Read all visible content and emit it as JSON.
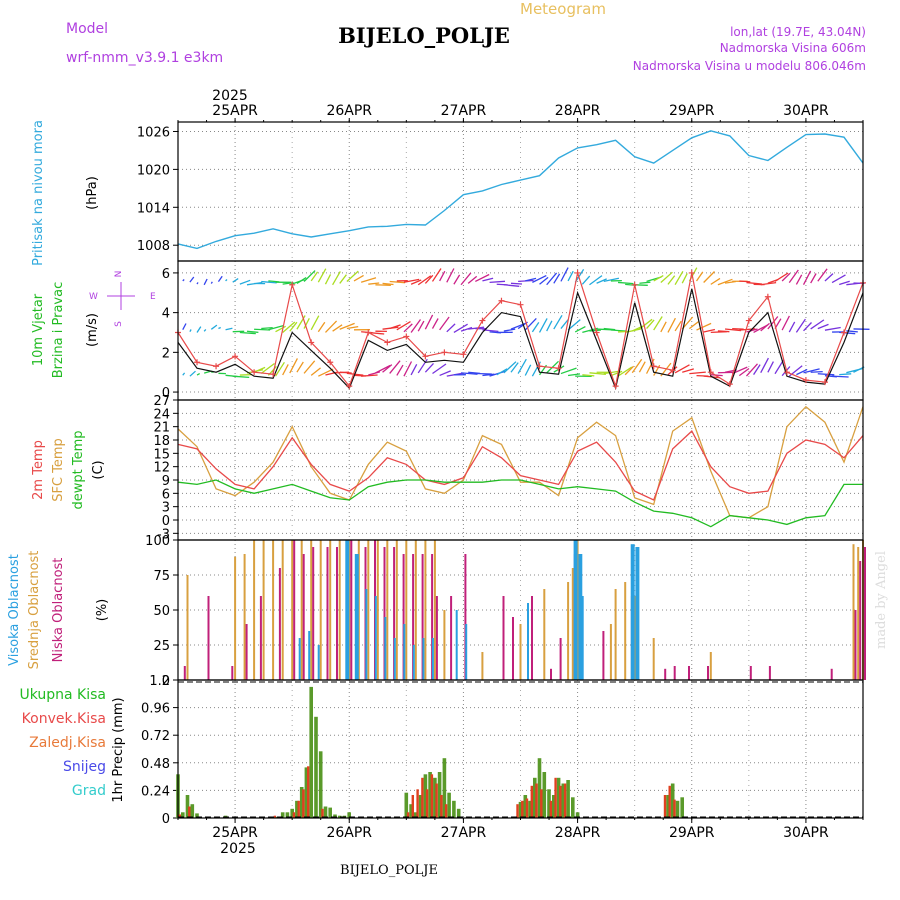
{
  "chart_data": {
    "type": "meteogram",
    "title": "BIJELO_POLJE",
    "subtitle": "Meteogram",
    "footer_label": "BIJELO_POLJE",
    "watermark": "made by Angel",
    "model_label": "Model",
    "model_name": "wrf-nmm_v3.9.1  e3km",
    "location_info": [
      "lon,lat (19.7E, 43.04N)",
      "Nadmorska Visina 606m",
      "Nadmorska Visina u modelu 806.046m"
    ],
    "year": "2025",
    "days": [
      "25APR",
      "26APR",
      "27APR",
      "28APR",
      "29APR",
      "30APR"
    ],
    "x_range_hours": [
      -12,
      132
    ],
    "colors": {
      "pressure": "#33aadd",
      "temp2m": "#e84a4a",
      "sfc": "#d8a040",
      "dewpt": "#22bb22",
      "high_cloud": "#2aa0e0",
      "mid_cloud": "#d8a040",
      "low_cloud": "#c0207a",
      "precip": "#5a9a2a",
      "conv": "#e04020",
      "wind_line": "#111111",
      "gust": "#e84a4a"
    },
    "panels": {
      "pressure": {
        "ylabel": "Pritisak na nivou mora",
        "unit": "(hPa)",
        "yticks": [
          "1008",
          "1014",
          "1020",
          "1026"
        ],
        "ylim": [
          1005.5,
          1027.5
        ],
        "series": {
          "x": [
            -12,
            -8,
            -4,
            0,
            4,
            8,
            12,
            16,
            20,
            24,
            28,
            32,
            36,
            40,
            44,
            48,
            52,
            56,
            60,
            64,
            68,
            72,
            76,
            80,
            84,
            88,
            92,
            96,
            100,
            104,
            108,
            112,
            116,
            120,
            124,
            128,
            132
          ],
          "values": [
            1008.2,
            1007.5,
            1008.6,
            1009.5,
            1009.9,
            1010.6,
            1009.8,
            1009.3,
            1009.8,
            1010.3,
            1010.9,
            1011.0,
            1011.3,
            1011.2,
            1013.5,
            1016.0,
            1016.6,
            1017.6,
            1018.3,
            1019.0,
            1021.8,
            1023.4,
            1023.9,
            1024.6,
            1022.0,
            1021.0,
            1023.0,
            1025.0,
            1026.1,
            1025.3,
            1022.2,
            1021.4,
            1023.5,
            1025.5,
            1025.6,
            1025.1,
            1021.0
          ]
        }
      },
      "wind": {
        "ylabel": [
          "10m Vjetar",
          "Brzina i Pravac"
        ],
        "unit": "(m/s)",
        "yticks": [
          "0",
          "2",
          "4",
          "6"
        ],
        "ylim": [
          -0.4,
          6.6
        ],
        "compass": [
          "N",
          "W",
          "E",
          "S"
        ],
        "speed": {
          "x": [
            -12,
            -8,
            -4,
            0,
            4,
            8,
            12,
            16,
            20,
            24,
            28,
            32,
            36,
            40,
            44,
            48,
            52,
            56,
            60,
            64,
            68,
            72,
            76,
            80,
            84,
            88,
            92,
            96,
            100,
            104,
            108,
            112,
            116,
            120,
            124,
            128,
            132
          ],
          "values": [
            2.5,
            1.2,
            1.0,
            1.4,
            0.8,
            0.7,
            3.0,
            2.1,
            1.2,
            0.2,
            2.6,
            2.1,
            2.4,
            1.5,
            1.6,
            1.5,
            3.0,
            4.0,
            3.8,
            1.0,
            0.9,
            5.0,
            2.6,
            0.2,
            4.5,
            1.0,
            0.8,
            5.2,
            0.8,
            0.3,
            3.0,
            4.0,
            0.8,
            0.5,
            0.4,
            2.5,
            5.0
          ]
        },
        "gust": {
          "x": [
            -12,
            -8,
            -4,
            0,
            4,
            8,
            12,
            16,
            20,
            24,
            28,
            32,
            36,
            40,
            44,
            48,
            52,
            56,
            60,
            64,
            68,
            72,
            76,
            80,
            84,
            88,
            92,
            96,
            100,
            104,
            108,
            112,
            116,
            120,
            124,
            128,
            132
          ],
          "values": [
            3.0,
            1.5,
            1.3,
            1.8,
            1.0,
            0.9,
            5.4,
            2.5,
            1.5,
            0.3,
            3.0,
            2.5,
            2.8,
            1.8,
            2.0,
            1.9,
            3.6,
            4.6,
            4.4,
            1.3,
            1.2,
            6.0,
            3.0,
            0.3,
            5.4,
            1.3,
            1.1,
            6.0,
            1.0,
            0.4,
            3.6,
            4.8,
            1.0,
            0.6,
            0.5,
            3.0,
            5.5
          ]
        }
      },
      "temperature": {
        "ylabel": [
          "2m Temp",
          "SFC Temp",
          "dewpt Temp"
        ],
        "unit": "(C)",
        "yticks": [
          "-3",
          "0",
          "3",
          "6",
          "9",
          "12",
          "15",
          "18",
          "21",
          "24",
          "27"
        ],
        "ylim": [
          -4.5,
          27
        ],
        "x": [
          -12,
          -8,
          -4,
          0,
          4,
          8,
          12,
          16,
          20,
          24,
          28,
          32,
          36,
          40,
          44,
          48,
          52,
          56,
          60,
          64,
          68,
          72,
          76,
          80,
          84,
          88,
          92,
          96,
          100,
          104,
          108,
          112,
          116,
          120,
          124,
          128,
          132
        ],
        "temp2m": [
          17.0,
          16.0,
          11.5,
          8.0,
          7.0,
          12.0,
          18.5,
          12.5,
          8.0,
          6.5,
          9.5,
          14.0,
          12.5,
          9.0,
          8.0,
          9.5,
          16.5,
          14.0,
          10.0,
          9.0,
          8.0,
          15.5,
          17.5,
          13.0,
          6.5,
          4.5,
          16.0,
          20.0,
          12.0,
          7.5,
          6.0,
          6.5,
          15.0,
          18.0,
          17.0,
          14.0,
          19.0
        ],
        "sfc": [
          20.5,
          16.5,
          7.0,
          5.5,
          8.5,
          13.0,
          21.0,
          12.0,
          6.0,
          4.5,
          12.5,
          17.5,
          15.5,
          7.0,
          6.0,
          9.0,
          19.0,
          17.0,
          8.5,
          8.5,
          5.5,
          18.5,
          22.0,
          19.0,
          5.0,
          3.5,
          20.0,
          23.0,
          11.0,
          1.0,
          0.5,
          3.0,
          21.0,
          25.5,
          22.0,
          13.0,
          25.5
        ],
        "dewpt": [
          8.5,
          8.0,
          9.0,
          7.0,
          6.0,
          7.0,
          8.0,
          6.5,
          5.0,
          4.5,
          7.5,
          8.5,
          9.0,
          9.0,
          8.5,
          8.5,
          8.5,
          9.0,
          9.0,
          8.0,
          7.0,
          7.5,
          7.0,
          6.5,
          4.0,
          2.0,
          1.5,
          0.5,
          -1.5,
          1.0,
          0.5,
          0.0,
          -1.0,
          0.5,
          1.0,
          8.0,
          8.0
        ]
      },
      "clouds": {
        "ylabel": [
          "Visoka Oblacnost",
          "Srednja Oblacnost",
          "Niska Oblacnost"
        ],
        "unit": "(%)",
        "yticks": [
          "0",
          "25",
          "50",
          "75",
          "100"
        ],
        "ylim": [
          0,
          100
        ],
        "high": {
          "x": [
            14,
            16,
            18,
            24,
            26,
            28,
            30,
            32,
            34,
            36,
            38,
            40,
            42,
            47,
            49,
            62,
            72,
            73,
            73.5,
            84,
            85
          ],
          "values": [
            30,
            35,
            25,
            100,
            90,
            65,
            60,
            45,
            30,
            40,
            25,
            30,
            30,
            50,
            40,
            55,
            100,
            90,
            60,
            97,
            95
          ]
        },
        "mid": {
          "x": [
            -10,
            0,
            2,
            4,
            6,
            8,
            10,
            12,
            14,
            16,
            18,
            20,
            22,
            24,
            26,
            28,
            30,
            32,
            34,
            36,
            38,
            40,
            42,
            44,
            52,
            60,
            65,
            70,
            71,
            72,
            79,
            80,
            82,
            84,
            88,
            100,
            130,
            131,
            132
          ],
          "values": [
            75,
            88,
            90,
            100,
            100,
            100,
            100,
            100,
            100,
            100,
            100,
            100,
            100,
            100,
            100,
            100,
            100,
            100,
            100,
            100,
            100,
            100,
            100,
            50,
            20,
            40,
            65,
            70,
            80,
            100,
            40,
            65,
            70,
            60,
            30,
            20,
            97,
            95,
            100
          ]
        },
        "low": {
          "x": [
            -11,
            -6,
            -1,
            2,
            5,
            9,
            12,
            14,
            16,
            19,
            21,
            24,
            25,
            27,
            29,
            31,
            33,
            35,
            37,
            39,
            41,
            42,
            45,
            48,
            56,
            58,
            62,
            66,
            68,
            71,
            77,
            83,
            90,
            92,
            95,
            99,
            108,
            112,
            125,
            130,
            131,
            132
          ],
          "values": [
            10,
            60,
            10,
            40,
            60,
            80,
            100,
            90,
            95,
            95,
            95,
            100,
            80,
            95,
            100,
            95,
            95,
            90,
            90,
            90,
            90,
            60,
            60,
            90,
            60,
            45,
            60,
            8,
            30,
            90,
            35,
            60,
            8,
            10,
            10,
            10,
            10,
            10,
            8,
            50,
            85,
            95
          ]
        }
      },
      "precip": {
        "ylabel": "1hr Precip (mm)",
        "yticks": [
          "0",
          "0.24",
          "0.48",
          "0.72",
          "0.96",
          "1.2"
        ],
        "ylim": [
          0,
          1.2
        ],
        "legend": [
          "Ukupna Kisa",
          "Konvek.Kisa",
          "Zaledj.Kisa",
          "Snijeg",
          "Grad"
        ],
        "legend_colors": [
          "#22bb22",
          "#e84a4a",
          "#e87a3a",
          "#4a4ae8",
          "#33cccc"
        ],
        "total": {
          "x": [
            -12,
            -11,
            -10,
            -9,
            -8,
            -2,
            9,
            10,
            11,
            12,
            13,
            14,
            15,
            16,
            17,
            18,
            19,
            20,
            21,
            22,
            23,
            24,
            36,
            37,
            38,
            39,
            40,
            41,
            42,
            43,
            44,
            45,
            46,
            47,
            60,
            61,
            62,
            63,
            64,
            65,
            66,
            67,
            68,
            69,
            70,
            71,
            72,
            91,
            92,
            93,
            94
          ],
          "values": [
            0.38,
            0.05,
            0.2,
            0.12,
            0.04,
            0.02,
            0.01,
            0.05,
            0.05,
            0.08,
            0.15,
            0.27,
            0.44,
            1.14,
            0.88,
            0.58,
            0.1,
            0.09,
            0.03,
            0.02,
            0.02,
            0.05,
            0.22,
            0.12,
            0.05,
            0.2,
            0.38,
            0.4,
            0.35,
            0.4,
            0.52,
            0.22,
            0.15,
            0.08,
            0.14,
            0.2,
            0.15,
            0.35,
            0.52,
            0.4,
            0.25,
            0.2,
            0.35,
            0.3,
            0.33,
            0.18,
            0.05,
            0.2,
            0.3,
            0.15,
            0.18
          ]
        },
        "conv": {
          "x": [
            -11,
            -9,
            9,
            13,
            14,
            15,
            16,
            19,
            37,
            38,
            39,
            40,
            41,
            42,
            43,
            44,
            45,
            60,
            61,
            62,
            63,
            64,
            65,
            67,
            68,
            69,
            70,
            91,
            92,
            93
          ],
          "values": [
            0.03,
            0.1,
            0.02,
            0.05,
            0.15,
            0.25,
            0.45,
            0.08,
            0.05,
            0.2,
            0.25,
            0.35,
            0.25,
            0.38,
            0.3,
            0.2,
            0.12,
            0.12,
            0.15,
            0.17,
            0.28,
            0.3,
            0.25,
            0.15,
            0.35,
            0.28,
            0.3,
            0.2,
            0.28,
            0.16
          ]
        }
      }
    }
  }
}
